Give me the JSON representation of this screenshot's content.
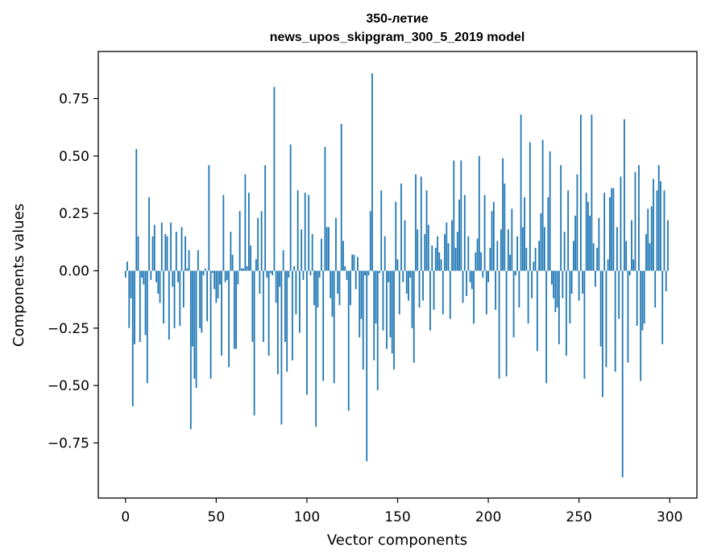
{
  "chart_data": {
    "type": "bar",
    "title_line1": "350-летие",
    "title_line2": "news_upos_skipgram_300_5_2019 model",
    "xlabel": "Vector components",
    "ylabel": "Components values",
    "xlim": [
      -15,
      315
    ],
    "ylim": [
      -0.99,
      0.955
    ],
    "xticks": [
      0,
      50,
      100,
      150,
      200,
      250,
      300
    ],
    "yticks": [
      0.75,
      0.5,
      0.25,
      0.0,
      -0.25,
      -0.5,
      -0.75
    ],
    "ytick_labels": [
      "0.75",
      "0.50",
      "0.25",
      "0.00",
      "−0.25",
      "−0.50",
      "−0.75"
    ],
    "bar_color": "#1f77b4",
    "grid": false,
    "values": [
      -0.03,
      0.04,
      -0.25,
      -0.12,
      -0.59,
      -0.32,
      0.53,
      0.15,
      -0.31,
      -0.03,
      -0.06,
      -0.28,
      -0.49,
      0.32,
      -0.04,
      0.15,
      0.2,
      -0.05,
      -0.1,
      -0.14,
      0.21,
      -0.23,
      0.16,
      0.15,
      -0.3,
      0.21,
      -0.07,
      -0.25,
      0.17,
      -0.05,
      -0.24,
      0.19,
      -0.16,
      0.15,
      0.01,
      0.09,
      -0.69,
      -0.33,
      -0.47,
      -0.51,
      0.09,
      -0.25,
      -0.27,
      -0.02,
      0.01,
      -0.22,
      0.46,
      -0.47,
      -0.01,
      -0.08,
      -0.14,
      -0.12,
      -0.06,
      -0.37,
      0.33,
      -0.05,
      -0.04,
      -0.42,
      0.17,
      0.07,
      -0.34,
      -0.34,
      -0.06,
      0.26,
      0.01,
      0.01,
      0.42,
      0.02,
      0.34,
      0.11,
      -0.31,
      -0.63,
      0.05,
      0.23,
      -0.1,
      0.26,
      -0.31,
      0.46,
      -0.03,
      -0.37,
      -0.01,
      -0.02,
      0.8,
      -0.14,
      -0.45,
      -0.07,
      -0.67,
      0.09,
      -0.31,
      -0.44,
      -0.03,
      0.55,
      -0.39,
      0.02,
      -0.19,
      0.35,
      -0.27,
      0.18,
      -0.04,
      0.34,
      -0.54,
      0.33,
      -0.02,
      0.16,
      -0.15,
      -0.68,
      -0.16,
      -0.03,
      0.14,
      -0.48,
      0.54,
      0.19,
      0.19,
      -0.12,
      -0.2,
      -0.49,
      0.23,
      -0.1,
      -0.15,
      0.64,
      0.13,
      0.02,
      -0.04,
      -0.61,
      -0.15,
      0.07,
      0.07,
      -0.08,
      0.06,
      -0.29,
      -0.21,
      -0.43,
      -0.02,
      -0.83,
      -0.02,
      0.26,
      0.86,
      -0.39,
      -0.23,
      -0.52,
      -0.01,
      0.35,
      -0.26,
      0.15,
      -0.34,
      -0.05,
      -0.29,
      -0.36,
      -0.43,
      0.3,
      0.05,
      -0.19,
      0.38,
      -0.05,
      0.22,
      -0.1,
      -0.13,
      -0.03,
      -0.25,
      -0.4,
      0.42,
      0.18,
      -0.16,
      0.41,
      -0.13,
      0.16,
      0.35,
      0.2,
      -0.26,
      0.11,
      -0.17,
      0.1,
      0.15,
      0.08,
      0.05,
      -0.19,
      0.16,
      0.21,
      0.12,
      -0.21,
      0.22,
      0.48,
      0.1,
      0.17,
      0.31,
      0.48,
      -0.14,
      0.33,
      -0.11,
      0.15,
      -0.05,
      -0.08,
      -0.23,
      0.08,
      0.14,
      0.5,
      0.08,
      -0.03,
      0.33,
      -0.19,
      -0.05,
      0.1,
      0.26,
      0.3,
      -0.17,
      0.13,
      -0.47,
      0.18,
      0.49,
      0.38,
      -0.46,
      0.18,
      0.07,
      0.27,
      -0.29,
      -0.02,
      0.15,
      -0.16,
      0.68,
      0.19,
      0.32,
      0.1,
      -0.23,
      0.56,
      -0.12,
      0.04,
      0.1,
      -0.35,
      0.13,
      0.25,
      0.57,
      0.19,
      -0.49,
      0.32,
      0.52,
      -0.06,
      -0.12,
      -0.18,
      -0.16,
      -0.32,
      0.46,
      -0.12,
      0.17,
      -0.37,
      0.35,
      -0.23,
      -0.1,
      0.13,
      0.24,
      0.42,
      -0.13,
      0.68,
      -0.1,
      -0.47,
      0.34,
      0.3,
      0.24,
      0.68,
      0.12,
      -0.07,
      0.1,
      0.23,
      -0.33,
      -0.55,
      0.34,
      -0.42,
      0.05,
      0.32,
      0.36,
      0.36,
      -0.44,
      0.19,
      -0.21,
      0.41,
      -0.9,
      0.66,
      0.13,
      -0.4,
      -0.02,
      0.22,
      0.05,
      0.43,
      -0.24,
      0.46,
      -0.48,
      -0.26,
      -0.23,
      0.16,
      0.27,
      0.12,
      0.28,
      0.4,
      -0.16,
      0.35,
      0.46,
      0.39,
      -0.32,
      0.35,
      -0.09,
      0.22
    ]
  }
}
